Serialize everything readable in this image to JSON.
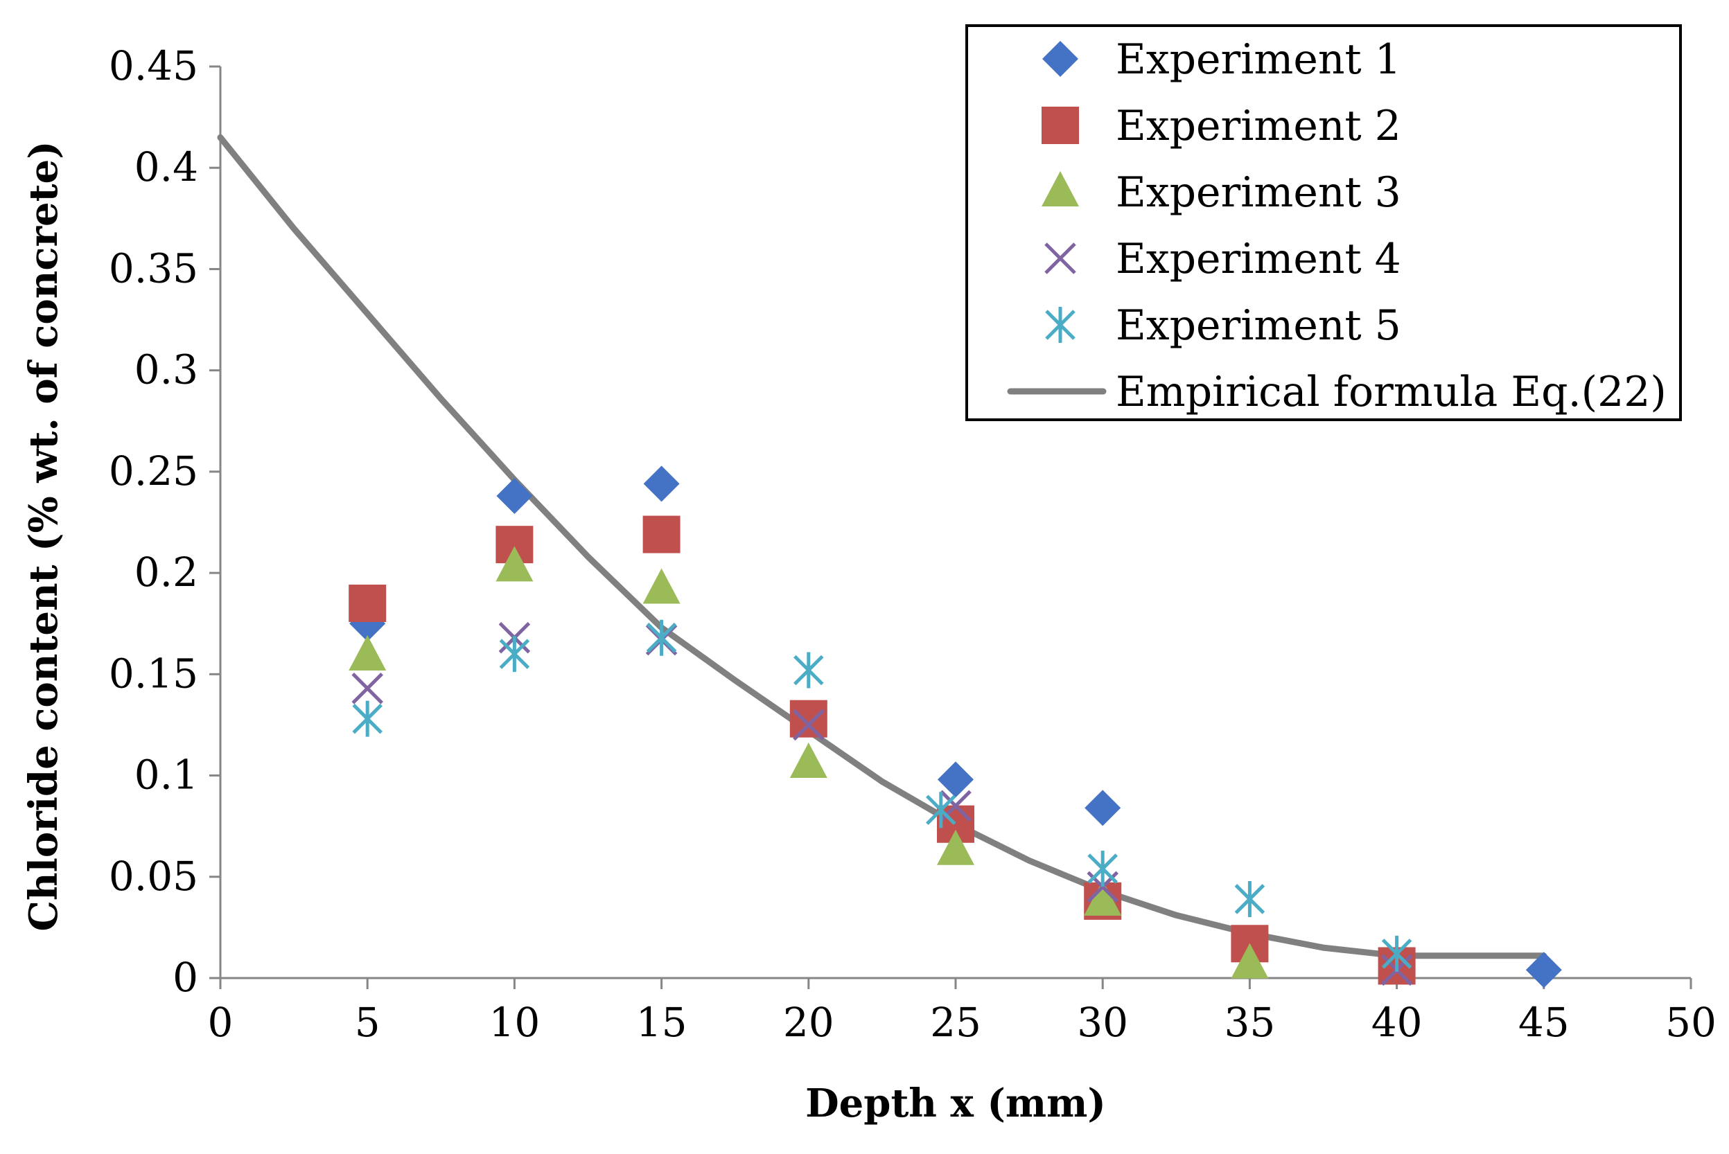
{
  "chart_data": {
    "type": "scatter",
    "title": "",
    "xlabel": "Depth x (mm)",
    "ylabel": "Chloride content (% wt. of concrete)",
    "xlim": [
      0,
      50
    ],
    "ylim": [
      0,
      0.45
    ],
    "x_ticks": [
      0,
      5,
      10,
      15,
      20,
      25,
      30,
      35,
      40,
      45,
      50
    ],
    "y_ticks": [
      0,
      0.05,
      0.1,
      0.15,
      0.2,
      0.25,
      0.3,
      0.35,
      0.4,
      0.45
    ],
    "x_tick_labels": [
      "0",
      "5",
      "10",
      "15",
      "20",
      "25",
      "30",
      "35",
      "40",
      "45",
      "50"
    ],
    "y_tick_labels": [
      "0",
      "0.05",
      "0.1",
      "0.15",
      "0.2",
      "0.25",
      "0.3",
      "0.35",
      "0.4",
      "0.45"
    ],
    "grid": false,
    "legend_position": "top-right",
    "series": [
      {
        "name": "Experiment 1",
        "marker": "diamond",
        "color": "#4472C4",
        "x": [
          5,
          10,
          15,
          25,
          30,
          45
        ],
        "y": [
          0.175,
          0.238,
          0.244,
          0.098,
          0.084,
          0.004
        ]
      },
      {
        "name": "Experiment 2",
        "marker": "square",
        "color": "#C0504D",
        "x": [
          5,
          10,
          15,
          20,
          25,
          30,
          35,
          40
        ],
        "y": [
          0.185,
          0.214,
          0.219,
          0.128,
          0.076,
          0.038,
          0.017,
          0.006
        ]
      },
      {
        "name": "Experiment 3",
        "marker": "triangle",
        "color": "#9BBB59",
        "x": [
          5,
          10,
          15,
          20,
          25,
          30,
          35
        ],
        "y": [
          0.159,
          0.203,
          0.192,
          0.106,
          0.063,
          0.038,
          0.007
        ]
      },
      {
        "name": "Experiment 4",
        "marker": "x",
        "color": "#8064A2",
        "x": [
          5,
          10,
          15,
          20,
          25,
          30,
          40
        ],
        "y": [
          0.143,
          0.168,
          0.167,
          0.125,
          0.085,
          0.045,
          0.004
        ]
      },
      {
        "name": "Experiment 5",
        "marker": "asterisk",
        "color": "#4BACC6",
        "x": [
          5,
          10,
          15,
          20,
          24.5,
          30,
          35,
          40
        ],
        "y": [
          0.128,
          0.16,
          0.168,
          0.152,
          0.083,
          0.054,
          0.039,
          0.012
        ]
      },
      {
        "name": "Empirical formula Eq.(22)",
        "marker": "line",
        "color": "#808080",
        "x": [
          0,
          2.5,
          5,
          7.5,
          10,
          12.5,
          15,
          17.5,
          20,
          22.5,
          25,
          27.5,
          30,
          32.5,
          35,
          37.5,
          40,
          42.5,
          45
        ],
        "y": [
          0.415,
          0.37,
          0.328,
          0.286,
          0.246,
          0.208,
          0.173,
          0.147,
          0.122,
          0.097,
          0.076,
          0.058,
          0.043,
          0.031,
          0.022,
          0.015,
          0.011,
          0.011,
          0.011
        ]
      }
    ]
  }
}
